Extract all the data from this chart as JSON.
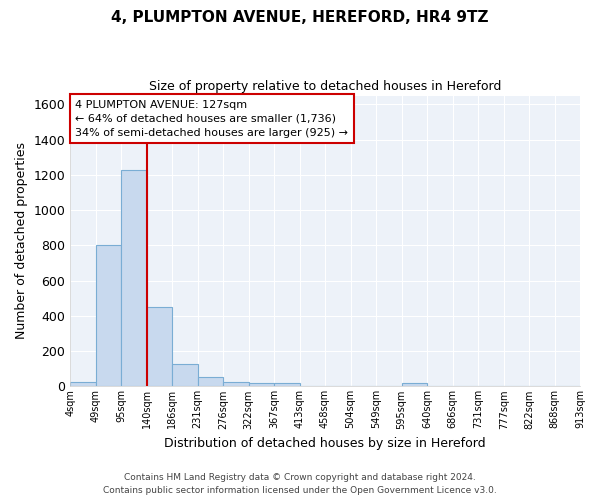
{
  "title": "4, PLUMPTON AVENUE, HEREFORD, HR4 9TZ",
  "subtitle": "Size of property relative to detached houses in Hereford",
  "xlabel": "Distribution of detached houses by size in Hereford",
  "ylabel": "Number of detached properties",
  "footer_line1": "Contains HM Land Registry data © Crown copyright and database right 2024.",
  "footer_line2": "Contains public sector information licensed under the Open Government Licence v3.0.",
  "bin_edges": [
    4,
    49,
    95,
    140,
    186,
    231,
    276,
    322,
    367,
    413,
    458,
    504,
    549,
    595,
    640,
    686,
    731,
    777,
    822,
    868,
    913
  ],
  "bar_heights": [
    25,
    800,
    1225,
    450,
    125,
    55,
    25,
    20,
    20,
    0,
    0,
    0,
    0,
    20,
    0,
    0,
    0,
    0,
    0,
    0
  ],
  "bar_color": "#c8d9ee",
  "bar_edge_color": "#7aadd4",
  "background_color": "#ffffff",
  "plot_bg_color": "#edf2f9",
  "grid_color": "#ffffff",
  "vline_x": 140,
  "vline_color": "#cc0000",
  "ylim": [
    0,
    1650
  ],
  "yticks": [
    0,
    200,
    400,
    600,
    800,
    1000,
    1200,
    1400,
    1600
  ],
  "annotation_text": "4 PLUMPTON AVENUE: 127sqm\n← 64% of detached houses are smaller (1,736)\n34% of semi-detached houses are larger (925) →",
  "annotation_box_color": "#cc0000",
  "title_fontsize": 11,
  "subtitle_fontsize": 9,
  "ylabel_fontsize": 9,
  "xlabel_fontsize": 9,
  "footer_fontsize": 6.5
}
